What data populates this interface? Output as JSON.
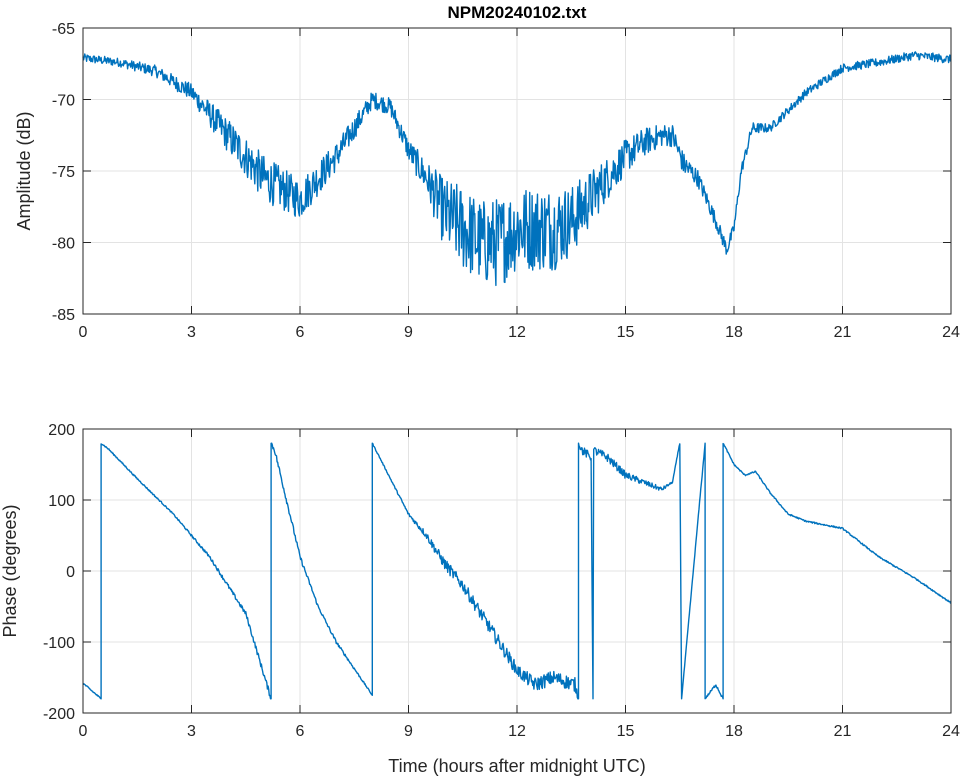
{
  "chart_data": [
    {
      "type": "line",
      "title": "NPM20240102.txt",
      "xlabel": "",
      "ylabel": "Amplitude (dB)",
      "xlim": [
        0,
        24
      ],
      "ylim": [
        -85,
        -65
      ],
      "xticks": [
        0,
        3,
        6,
        9,
        12,
        15,
        18,
        21,
        24
      ],
      "yticks": [
        -65,
        -70,
        -75,
        -80,
        -85
      ],
      "grid": true,
      "color": "#0072BD",
      "series": [
        {
          "name": "Amplitude",
          "x": [
            0,
            1,
            2,
            3,
            4,
            5,
            6,
            7,
            8,
            8.5,
            9,
            9.5,
            10,
            10.5,
            11,
            11.5,
            12,
            12.5,
            13,
            13.5,
            14,
            14.5,
            15,
            15.5,
            16,
            16.3,
            16.6,
            17,
            17.5,
            17.8,
            18,
            18.2,
            18.5,
            19,
            20,
            21,
            22,
            23,
            24
          ],
          "y": [
            -67.1,
            -67.4,
            -68.0,
            -69.5,
            -72.5,
            -75.5,
            -77.0,
            -74.0,
            -70.0,
            -70.5,
            -73.5,
            -75.5,
            -78.0,
            -79.0,
            -80.0,
            -80.0,
            -79.0,
            -79.0,
            -79.0,
            -78.5,
            -77.0,
            -75.5,
            -74.0,
            -73.0,
            -72.5,
            -72.5,
            -74.5,
            -75.5,
            -78.5,
            -80.5,
            -79.0,
            -75.0,
            -72.0,
            -72.0,
            -69.5,
            -67.8,
            -67.4,
            -66.9,
            -67.2
          ],
          "noise_db": [
            0.3,
            0.3,
            0.4,
            0.6,
            1.2,
            1.6,
            1.4,
            1.0,
            0.6,
            0.6,
            0.8,
            1.2,
            2.5,
            3.0,
            3.0,
            3.2,
            3.0,
            3.0,
            3.0,
            2.5,
            2.0,
            1.5,
            1.2,
            1.0,
            0.8,
            0.8,
            0.8,
            0.6,
            0.5,
            0.5,
            0.4,
            0.4,
            0.4,
            0.3,
            0.3,
            0.3,
            0.3,
            0.3,
            0.3
          ]
        }
      ]
    },
    {
      "type": "line",
      "title": "",
      "xlabel": "Time (hours after midnight UTC)",
      "ylabel": "Phase (degrees)",
      "xlim": [
        0,
        24
      ],
      "ylim": [
        -200,
        200
      ],
      "xticks": [
        0,
        3,
        6,
        9,
        12,
        15,
        18,
        21,
        24
      ],
      "yticks": [
        200,
        100,
        0,
        -100,
        -200
      ],
      "grid": true,
      "color": "#0072BD",
      "series": [
        {
          "name": "Phase",
          "x": [
            0,
            0.5,
            0.5,
            0.7,
            1.5,
            2.5,
            3.5,
            4.5,
            5.2,
            5.2,
            5.3,
            6,
            6.5,
            7,
            8,
            8,
            8.5,
            9,
            9.5,
            10,
            10.5,
            11,
            11.5,
            12,
            12.5,
            13,
            13.6,
            13.7,
            13.7,
            13.8,
            14.05,
            14.1,
            14.12,
            14.5,
            15,
            16,
            16.3,
            16.5,
            16.55,
            17.2,
            17.2,
            17.5,
            17.7,
            17.7,
            18,
            18.3,
            18.6,
            19,
            19.5,
            20,
            21,
            22,
            23,
            24
          ],
          "y": [
            -158,
            -180,
            180,
            172,
            130,
            80,
            20,
            -60,
            -180,
            180,
            170,
            20,
            -50,
            -100,
            -175,
            180,
            130,
            80,
            50,
            10,
            -20,
            -60,
            -100,
            -140,
            -160,
            -150,
            -160,
            -180,
            180,
            170,
            160,
            -180,
            170,
            160,
            135,
            115,
            125,
            180,
            -180,
            180,
            -180,
            -160,
            -180,
            180,
            150,
            135,
            140,
            110,
            80,
            70,
            60,
            20,
            -10,
            -45
          ],
          "noise_deg": [
            1,
            1,
            1,
            1,
            1,
            1,
            2,
            3,
            4,
            4,
            4,
            3,
            2,
            2,
            1,
            1,
            1,
            2,
            5,
            8,
            8,
            9,
            9,
            9,
            10,
            10,
            10,
            3,
            3,
            6,
            6,
            2,
            6,
            6,
            5,
            3,
            1,
            1,
            1,
            1,
            1,
            2,
            2,
            1,
            1,
            1,
            1,
            1,
            1,
            1,
            1,
            1,
            1,
            1
          ]
        }
      ]
    }
  ]
}
